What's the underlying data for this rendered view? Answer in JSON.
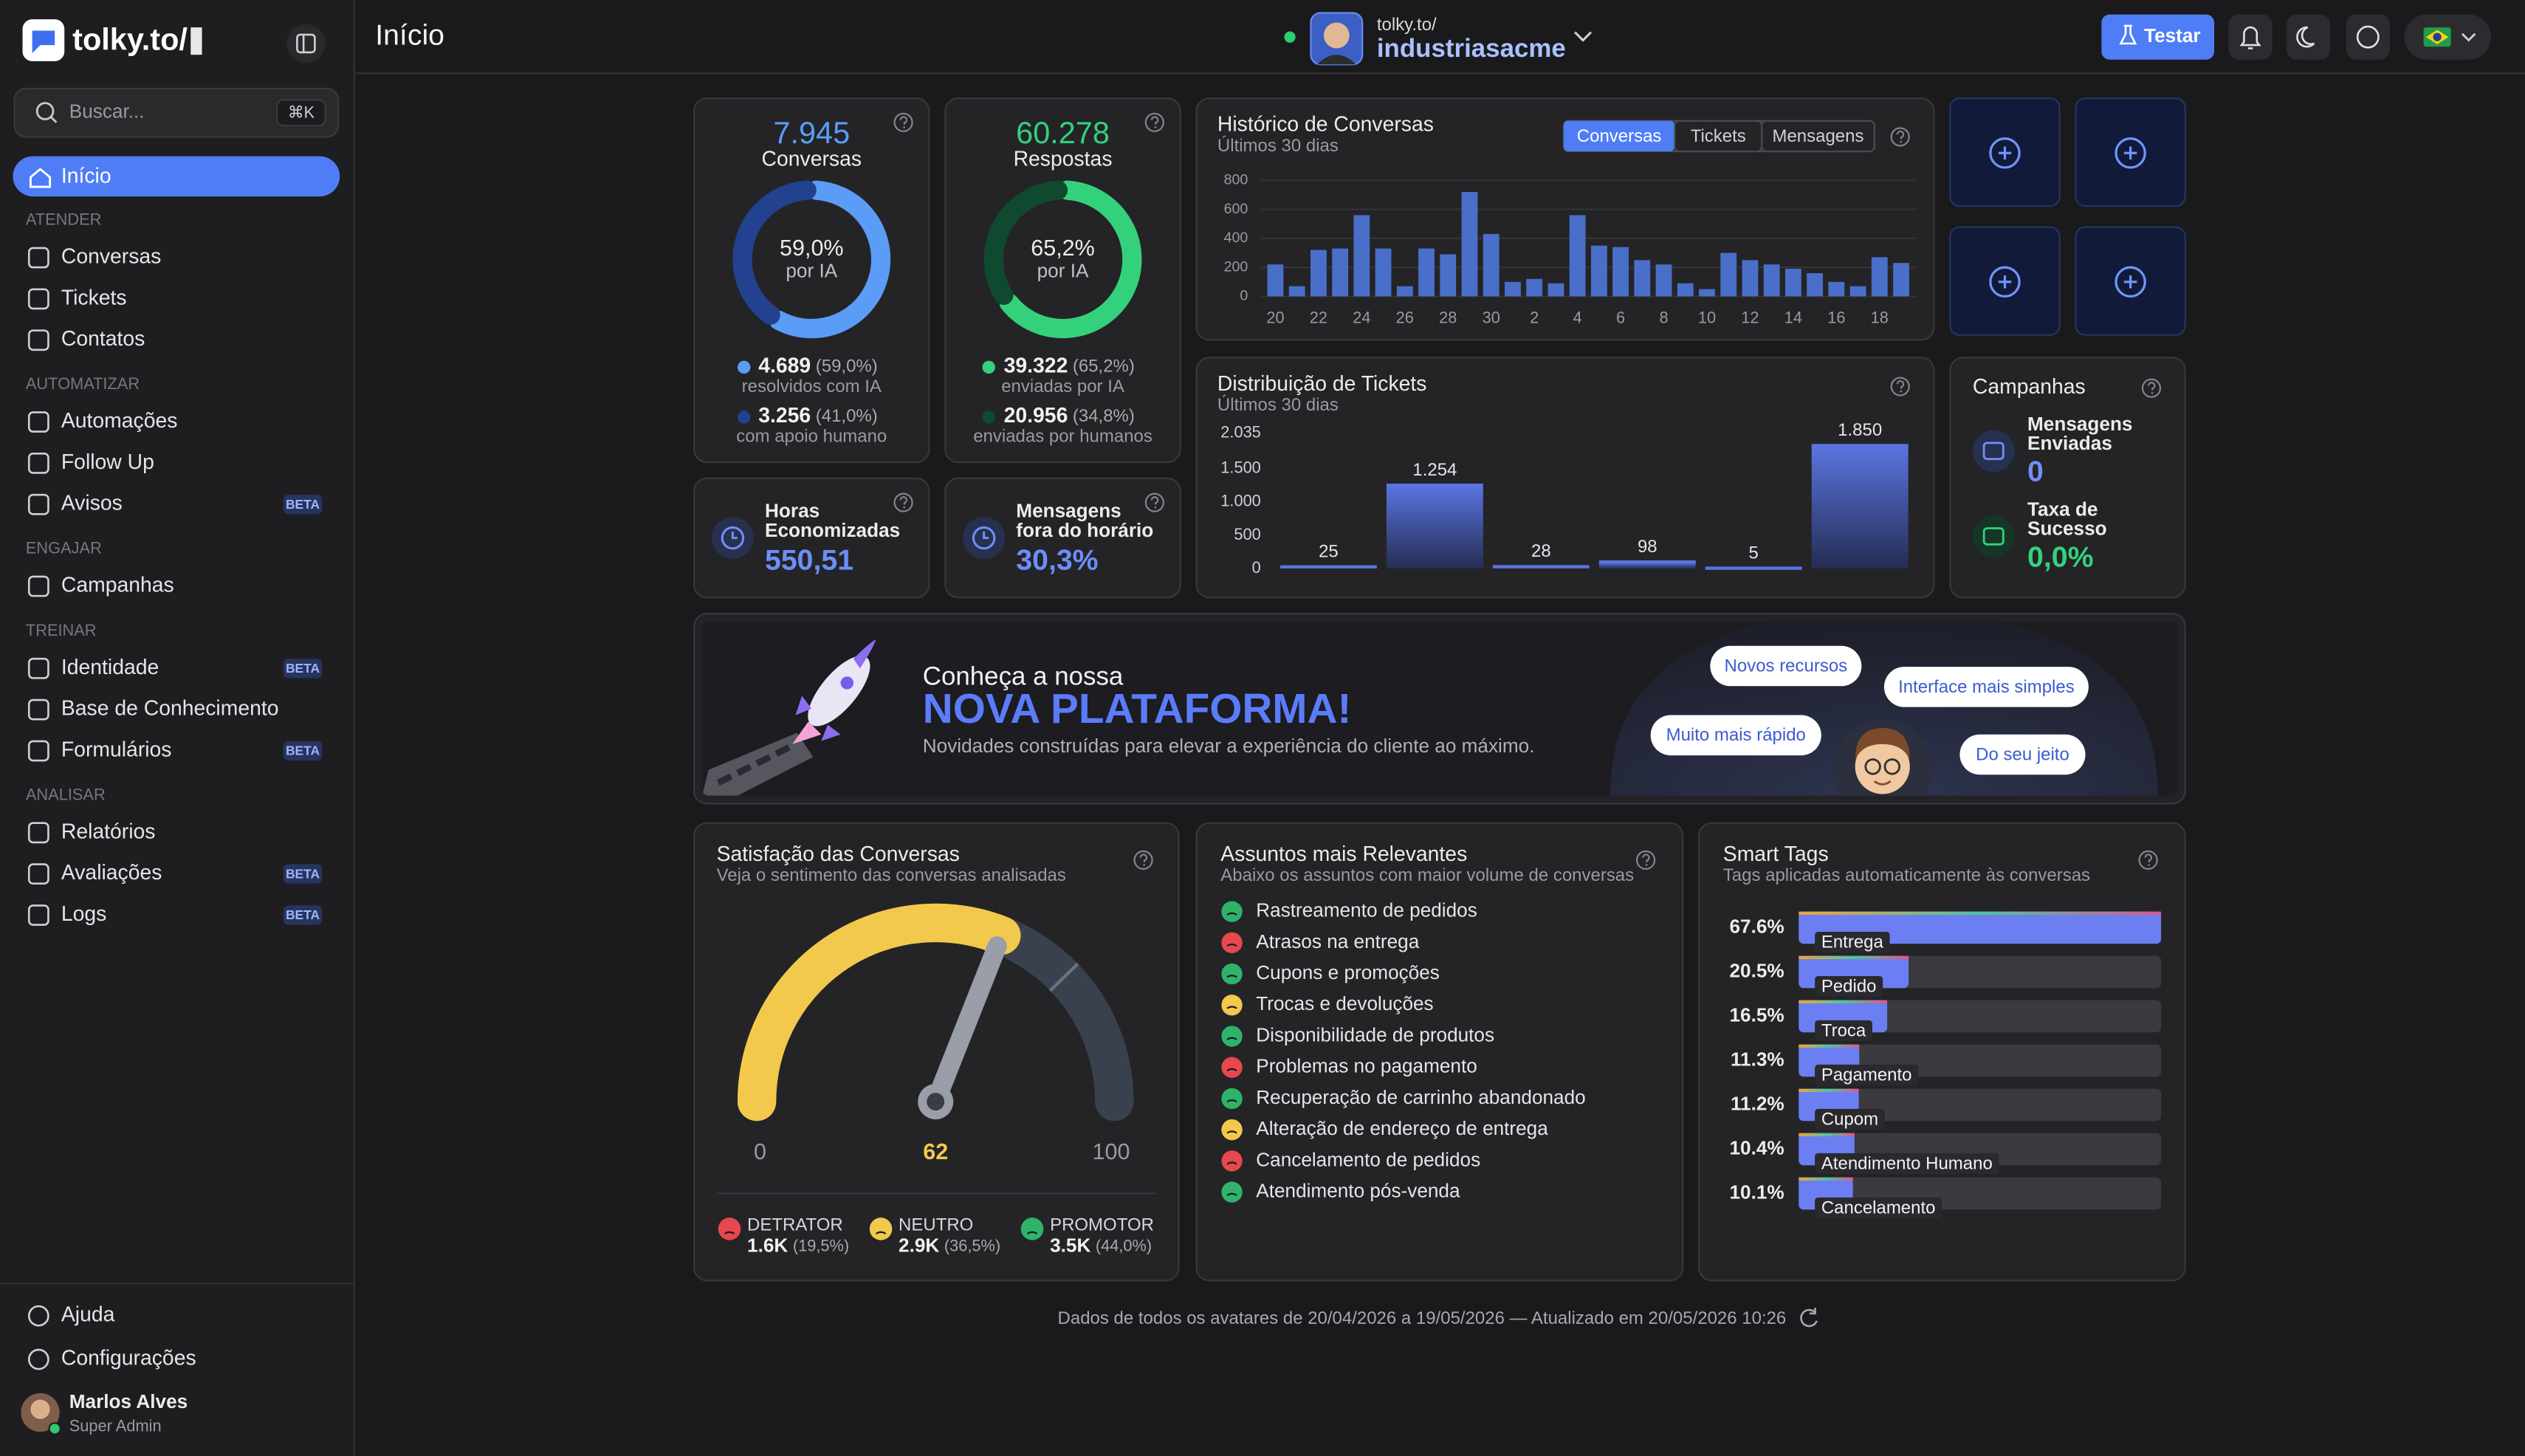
{
  "sidebar": {
    "brand": "tolky.to/",
    "search": "Buscar...",
    "shortcut": "⌘K",
    "home": "Início",
    "sections": [
      {
        "title": "ATENDER",
        "items": [
          {
            "label": "Conversas"
          },
          {
            "label": "Tickets"
          },
          {
            "label": "Contatos"
          }
        ]
      },
      {
        "title": "AUTOMATIZAR",
        "items": [
          {
            "label": "Automações"
          },
          {
            "label": "Follow Up"
          },
          {
            "label": "Avisos",
            "badge": "BETA"
          }
        ]
      },
      {
        "title": "ENGAJAR",
        "items": [
          {
            "label": "Campanhas"
          }
        ]
      },
      {
        "title": "TREINAR",
        "items": [
          {
            "label": "Identidade",
            "badge": "BETA"
          },
          {
            "label": "Base de Conhecimento"
          },
          {
            "label": "Formulários",
            "badge": "BETA"
          }
        ]
      },
      {
        "title": "ANALISAR",
        "items": [
          {
            "label": "Relatórios"
          },
          {
            "label": "Avaliações",
            "badge": "BETA"
          },
          {
            "label": "Logs",
            "badge": "BETA"
          }
        ]
      }
    ],
    "footer": [
      "Ajuda",
      "Configurações"
    ],
    "user": {
      "name": "Marlos Alves",
      "role": "Super Admin"
    }
  },
  "header": {
    "title": "Início",
    "workspace_prefix": "tolky.to/",
    "workspace": "industriasacme",
    "test_button": "Testar"
  },
  "kpis": [
    {
      "total": "7.945",
      "label": "Conversas",
      "center_value": "59,0%",
      "center_label": "por IA",
      "type": "pie",
      "values": [
        59.0,
        41.0
      ],
      "colors": [
        "#5b9df6",
        "#22418f"
      ],
      "rows": [
        {
          "value": "4.689",
          "share": "(59,0%)",
          "caption": "resolvidos com IA"
        },
        {
          "value": "3.256",
          "share": "(41,0%)",
          "caption": "com apoio humano"
        }
      ]
    },
    {
      "total": "60.278",
      "label": "Respostas",
      "center_value": "65,2%",
      "center_label": "por IA",
      "type": "pie",
      "values": [
        65.2,
        34.8
      ],
      "colors": [
        "#34d17c",
        "#0f4a30"
      ],
      "rows": [
        {
          "value": "39.322",
          "share": "(65,2%)",
          "caption": "enviadas por IA"
        },
        {
          "value": "20.956",
          "share": "(34,8%)",
          "caption": "enviadas por humanos"
        }
      ]
    }
  ],
  "savings": [
    {
      "label": [
        "Horas",
        "Economizadas"
      ],
      "value": "550,51"
    },
    {
      "label": [
        "Mensagens",
        "fora do horário"
      ],
      "value": "30,3%"
    }
  ],
  "history": {
    "type": "bar",
    "title": "Histórico de Conversas",
    "subtitle": "Últimos 30 dias",
    "tabs": [
      "Conversas",
      "Tickets",
      "Mensagens"
    ],
    "categories": [
      "20",
      null,
      "22",
      null,
      "24",
      null,
      "26",
      null,
      "28",
      null,
      "30",
      null,
      "2",
      null,
      "4",
      null,
      "6",
      null,
      "8",
      null,
      "10",
      null,
      "12",
      null,
      "14",
      null,
      "16",
      null,
      "18",
      null
    ],
    "values": [
      220,
      70,
      320,
      330,
      560,
      330,
      70,
      330,
      290,
      720,
      430,
      100,
      120,
      90,
      560,
      350,
      340,
      250,
      220,
      90,
      50,
      300,
      250,
      220,
      190,
      160,
      100,
      70,
      270,
      230
    ],
    "ylim": [
      0,
      800
    ],
    "yticks": [
      0,
      200,
      400,
      600,
      800
    ],
    "grid": true,
    "color": "#4a6fc9"
  },
  "tickets": {
    "type": "bar",
    "title": "Distribuição de Tickets",
    "subtitle": "Últimos 30 dias",
    "values": [
      25,
      1254,
      28,
      98,
      5,
      1850
    ],
    "value_labels": [
      "25",
      "1.254",
      "28",
      "98",
      "5",
      "1.850"
    ],
    "ylim": [
      0,
      2035
    ],
    "yticks": [
      0,
      500,
      {
        "value": 1000,
        "label": "1.000"
      },
      {
        "value": 1500,
        "label": "1.500"
      },
      {
        "value": 2035,
        "label": "2.035"
      }
    ],
    "grid": false,
    "color": "#5a74e0"
  },
  "campaigns": {
    "title": "Campanhas",
    "metrics": [
      {
        "label": [
          "Mensagens",
          "Enviadas"
        ],
        "value": "0"
      },
      {
        "label": [
          "Taxa de",
          "Sucesso"
        ],
        "value": "0,0%"
      }
    ]
  },
  "banner": {
    "kicker": "Conheça a nossa",
    "headline": "NOVA PLATAFORMA!",
    "text": "Novidades construídas para elevar a experiência do cliente ao máximo.",
    "tags": [
      "Novos recursos",
      "Interface mais simples",
      "Muito mais rápido",
      "Do seu jeito"
    ]
  },
  "satisfaction": {
    "title": "Satisfação das Conversas",
    "subtitle": "Veja o sentimento das conversas analisadas",
    "gauge": {
      "type": "gauge",
      "value": 62,
      "range": [
        0,
        100
      ],
      "color": "#f2c94c"
    },
    "legend": [
      {
        "name": "DETRATOR",
        "value": "1.6K",
        "share": "(19,5%)",
        "color": "#e5484d"
      },
      {
        "name": "NEUTRO",
        "value": "2.9K",
        "share": "(36,5%)",
        "color": "#f2c94c"
      },
      {
        "name": "PROMOTOR",
        "value": "3.5K",
        "share": "(44,0%)",
        "color": "#2fb36a"
      }
    ]
  },
  "topics": {
    "title": "Assuntos mais Relevantes",
    "subtitle": "Abaixo os assuntos com maior volume de conversas",
    "items": [
      {
        "label": "Rastreamento de pedidos",
        "color": "#2fb36a"
      },
      {
        "label": "Atrasos na entrega",
        "color": "#e5484d"
      },
      {
        "label": "Cupons e promoções",
        "color": "#2fb36a"
      },
      {
        "label": "Trocas e devoluções",
        "color": "#f2c94c"
      },
      {
        "label": "Disponibilidade de produtos",
        "color": "#2fb36a"
      },
      {
        "label": "Problemas no pagamento",
        "color": "#e5484d"
      },
      {
        "label": "Recuperação de carrinho abandonado",
        "color": "#2fb36a"
      },
      {
        "label": "Alteração de endereço de entrega",
        "color": "#f2c94c"
      },
      {
        "label": "Cancelamento de pedidos",
        "color": "#e5484d"
      },
      {
        "label": "Atendimento pós-venda",
        "color": "#2fb36a"
      }
    ]
  },
  "tags": {
    "type": "bar",
    "title": "Smart Tags",
    "subtitle": "Tags aplicadas automaticamente às conversas",
    "categories": [
      "Entrega",
      "Pedido",
      "Troca",
      "Pagamento",
      "Cupom",
      "Atendimento Humano",
      "Cancelamento"
    ],
    "values": [
      67.6,
      20.5,
      16.5,
      11.3,
      11.2,
      10.4,
      10.1
    ],
    "value_labels": [
      "67.6%",
      "20.5%",
      "16.5%",
      "11.3%",
      "11.2%",
      "10.4%",
      "10.1%"
    ],
    "color": "#6b7ff2"
  },
  "footer": "Dados de todos os avatares de 20/04/2026 a 19/05/2026 — Atualizado em 20/05/2026 10:26"
}
